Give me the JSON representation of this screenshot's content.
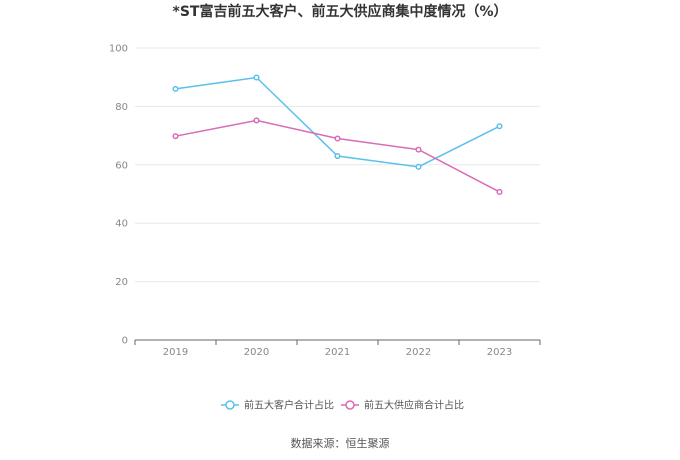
{
  "chart_data": {
    "type": "line",
    "title": "*ST富吉前五大客户、前五大供应商集中度情况（%）",
    "x": [
      "2019",
      "2020",
      "2021",
      "2022",
      "2023"
    ],
    "ylim": [
      0,
      100
    ],
    "yticks": [
      "0",
      "20",
      "40",
      "60",
      "80",
      "100"
    ],
    "grid": true,
    "legend_position": "bottom",
    "series": [
      {
        "name": "前五大客户合计占比",
        "color": "#5bc0eb",
        "values": [
          86.0,
          89.9,
          63.0,
          59.3,
          73.2
        ]
      },
      {
        "name": "前五大供应商合计占比",
        "color": "#d96cb5",
        "values": [
          69.8,
          75.2,
          69.0,
          65.2,
          50.7
        ]
      }
    ],
    "source": "数据来源：恒生聚源"
  }
}
